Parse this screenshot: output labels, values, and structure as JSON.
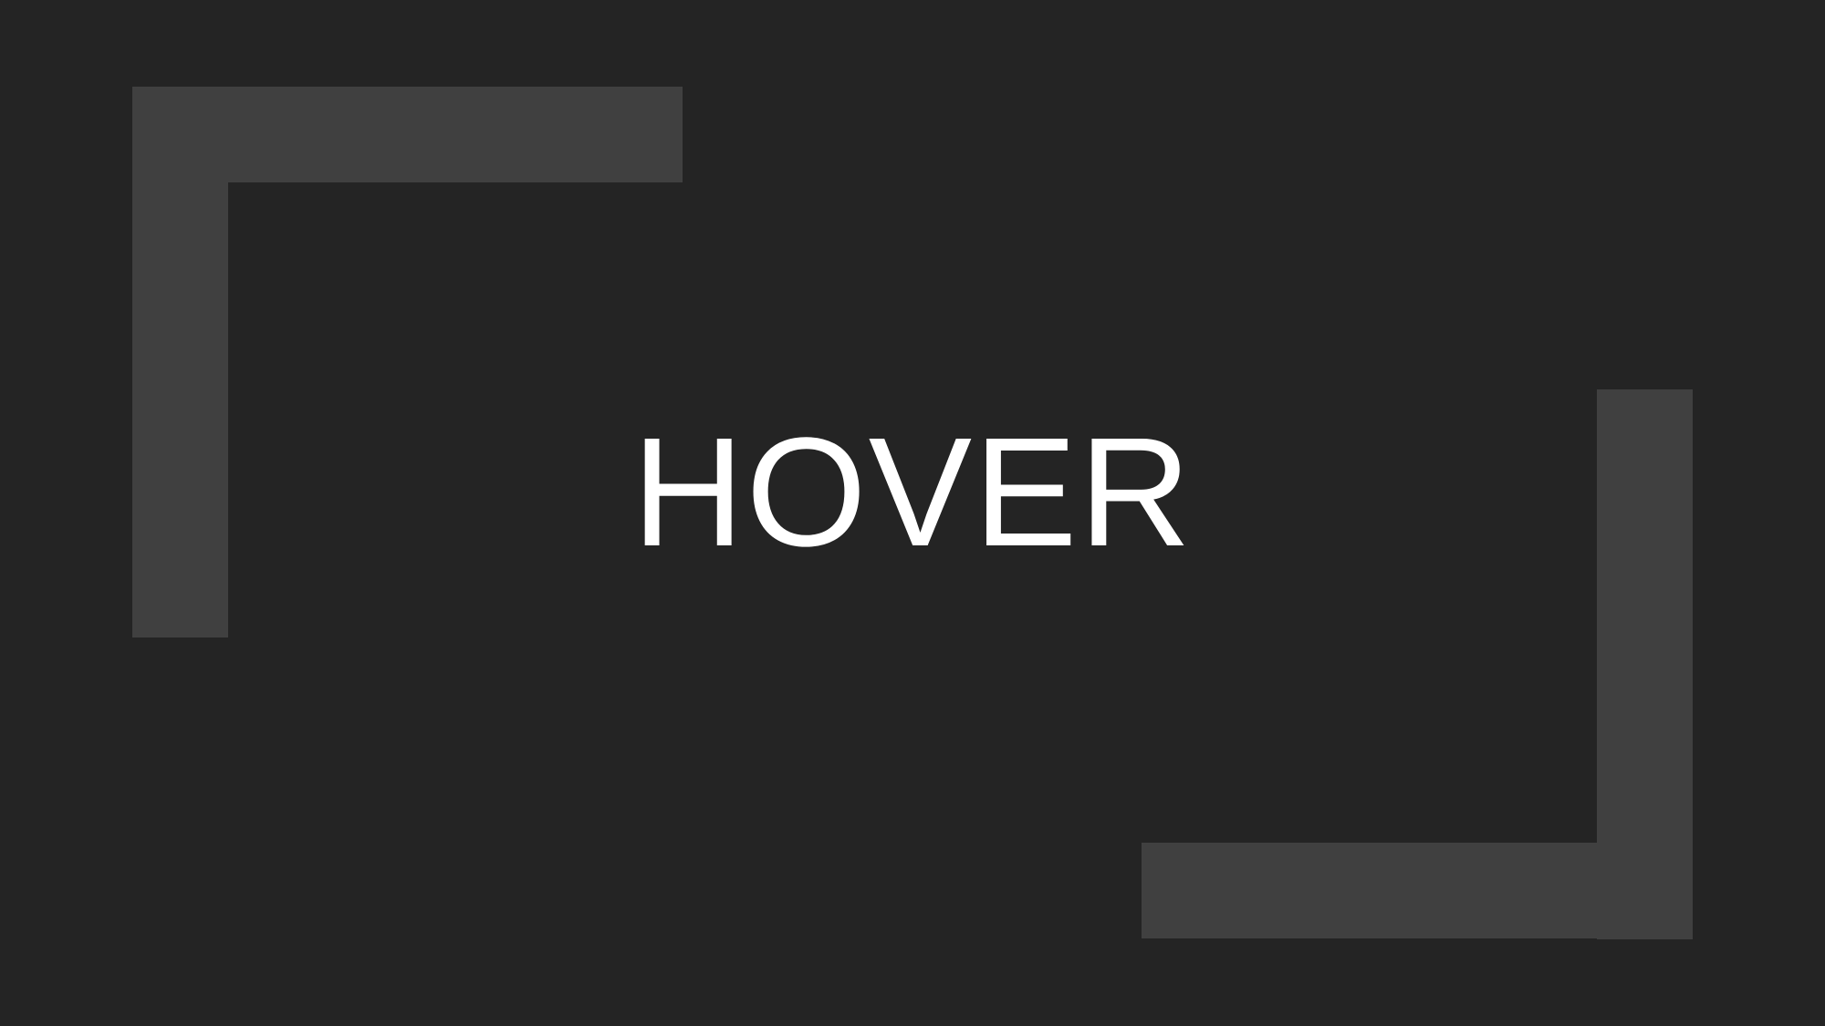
{
  "slide": {
    "title": "HOVER"
  },
  "colors": {
    "background": "#242424",
    "bracket": "#404040",
    "title": "#ffffff"
  }
}
